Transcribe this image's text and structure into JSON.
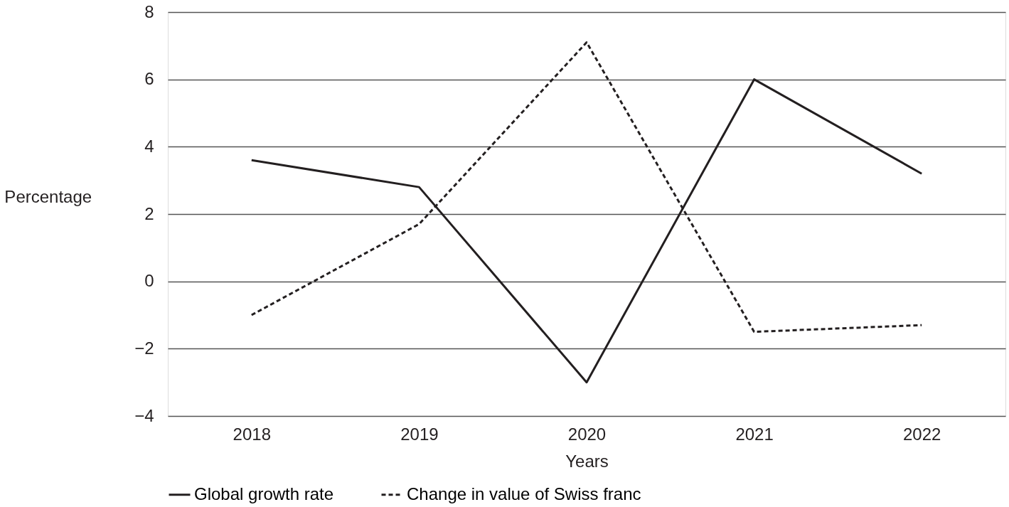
{
  "chart_data": {
    "type": "line",
    "xlabel": "Years",
    "ylabel": "Percentage",
    "categories": [
      "2018",
      "2019",
      "2020",
      "2021",
      "2022"
    ],
    "series": [
      {
        "name": "Global growth rate",
        "color": "#231f20",
        "line_style": "solid",
        "values": [
          3.6,
          2.8,
          -3.0,
          6.0,
          3.2
        ]
      },
      {
        "name": "Change in value of Swiss franc",
        "color": "#231f20",
        "line_style": "dashed",
        "values": [
          -1.0,
          1.7,
          7.1,
          -1.5,
          -1.3
        ]
      }
    ],
    "ylim": [
      -4,
      8
    ],
    "yticks": [
      -4,
      -2,
      0,
      2,
      4,
      6,
      8
    ],
    "grid": "y",
    "legend": "bottom",
    "marker": "none"
  }
}
